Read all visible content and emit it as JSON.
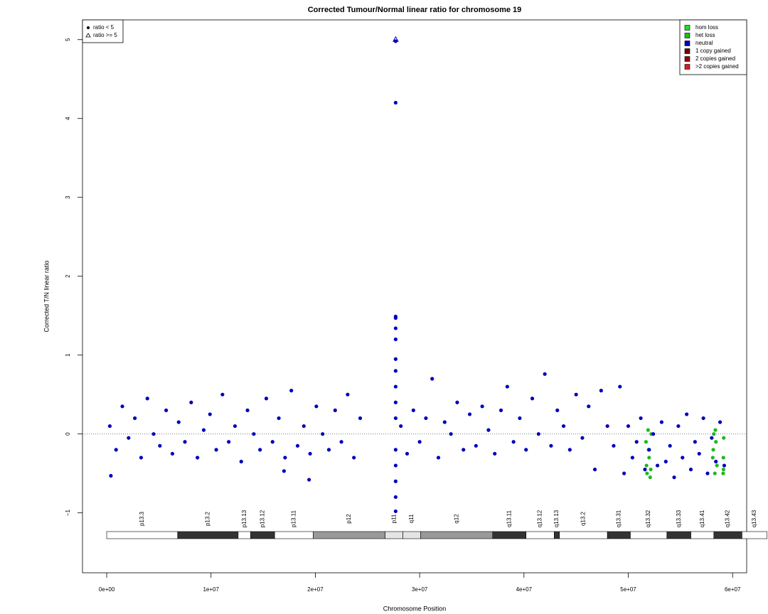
{
  "chart_data": {
    "type": "scatter",
    "title": "Corrected Tumour/Normal linear ratio for chromosome  19",
    "x_label": "Chromosome Position",
    "y_label": "Corrected T/N linear ratio",
    "xlim": [
      -2320000,
      61350000
    ],
    "ylim": [
      -1.76,
      5.25
    ],
    "xticks": [
      {
        "value": 0,
        "label": "0e+00"
      },
      {
        "value": 10000000,
        "label": "1e+07"
      },
      {
        "value": 20000000,
        "label": "2e+07"
      },
      {
        "value": 30000000,
        "label": "3e+07"
      },
      {
        "value": 40000000,
        "label": "4e+07"
      },
      {
        "value": 50000000,
        "label": "5e+07"
      },
      {
        "value": 60000000,
        "label": "6e+07"
      }
    ],
    "yticks": [
      {
        "value": -1,
        "label": "−1"
      },
      0,
      1,
      2,
      3,
      4,
      5
    ],
    "hline": 0,
    "series": [
      {
        "name": "hom loss",
        "color": "#22dd22",
        "x": [],
        "values": []
      },
      {
        "name": "het loss",
        "color": "#1fb81f",
        "x": [
          51700000,
          51800000,
          51900000,
          52000000,
          52100000,
          52200000,
          51750000,
          51950000,
          52150000,
          58100000,
          58200000,
          58300000,
          58400000,
          58500000,
          58150000,
          58350000,
          59100000,
          59150000,
          59120000,
          59130000
        ],
        "values": [
          -0.1,
          -0.5,
          0.05,
          -0.3,
          -0.55,
          0,
          -0.4,
          -0.2,
          -0.45,
          -0.3,
          0,
          -0.5,
          -0.1,
          -0.4,
          -0.2,
          0.05,
          -0.5,
          -0.05,
          -0.3,
          -0.45
        ]
      },
      {
        "name": "neutral",
        "color": "#0000bb",
        "x": [
          300000,
          900000,
          1500000,
          2100000,
          2700000,
          3300000,
          3900000,
          4500000,
          5100000,
          5700000,
          6300000,
          6900000,
          7500000,
          8100000,
          8700000,
          9300000,
          9900000,
          10500000,
          11100000,
          11700000,
          12300000,
          12900000,
          13500000,
          14100000,
          14700000,
          15300000,
          15900000,
          16500000,
          17100000,
          17700000,
          18300000,
          18900000,
          19500000,
          20100000,
          20700000,
          21300000,
          21900000,
          22500000,
          23100000,
          23700000,
          24300000,
          400000,
          19400000,
          17000000,
          27700000,
          27700000,
          27700000,
          27700000,
          27700000,
          27700000,
          27700000,
          27700000,
          27700000,
          27700000,
          27700000,
          27700000,
          27700000,
          27700000,
          27700000,
          27700000,
          28200000,
          28800000,
          29400000,
          30000000,
          30600000,
          31200000,
          31800000,
          32400000,
          33000000,
          33600000,
          34200000,
          34800000,
          35400000,
          36000000,
          36600000,
          37200000,
          37800000,
          38400000,
          39000000,
          39600000,
          40200000,
          40800000,
          41400000,
          42000000,
          42600000,
          43200000,
          43800000,
          44400000,
          45000000,
          45600000,
          46200000,
          46800000,
          47400000,
          48000000,
          48600000,
          49200000,
          49600000,
          50000000,
          50400000,
          50800000,
          51200000,
          51600000,
          52000000,
          52400000,
          52800000,
          53200000,
          53600000,
          54000000,
          54400000,
          54800000,
          55200000,
          55600000,
          56000000,
          56400000,
          56800000,
          57200000,
          57600000,
          58000000,
          58400000,
          58800000,
          59200000
        ],
        "values": [
          0.1,
          -0.2,
          0.35,
          -0.05,
          0.2,
          -0.3,
          0.45,
          0,
          -0.15,
          0.3,
          -0.25,
          0.15,
          -0.1,
          0.4,
          -0.3,
          0.05,
          0.25,
          -0.2,
          0.5,
          -0.1,
          0.1,
          -0.35,
          0.3,
          0,
          -0.2,
          0.45,
          -0.1,
          0.2,
          -0.3,
          0.55,
          -0.15,
          0.1,
          -0.25,
          0.35,
          0,
          -0.2,
          0.3,
          -0.1,
          0.5,
          -0.3,
          0.2,
          -0.53,
          -0.58,
          -0.47,
          1.49,
          1.47,
          1.34,
          1.2,
          0.95,
          0.8,
          0.6,
          0.4,
          0.2,
          -0.2,
          -0.4,
          -0.6,
          -0.8,
          -0.98,
          4.2,
          4.98,
          0.1,
          -0.25,
          0.3,
          -0.1,
          0.2,
          0.7,
          -0.3,
          0.15,
          0,
          0.4,
          -0.2,
          0.25,
          -0.15,
          0.35,
          0.05,
          -0.25,
          0.3,
          0.6,
          -0.1,
          0.2,
          -0.2,
          0.45,
          0,
          0.76,
          -0.15,
          0.3,
          0.1,
          -0.2,
          0.5,
          -0.05,
          0.35,
          -0.45,
          0.55,
          0.1,
          -0.15,
          0.6,
          -0.5,
          0.1,
          -0.3,
          -0.1,
          0.2,
          -0.45,
          -0.2,
          0,
          -0.4,
          0.15,
          -0.35,
          -0.15,
          -0.55,
          0.1,
          -0.3,
          0.25,
          -0.45,
          -0.1,
          -0.25,
          0.2,
          -0.5,
          -0.05,
          -0.35,
          0.15,
          -0.4
        ]
      },
      {
        "name": "1 copy gained",
        "color": "#6b0000",
        "x": [],
        "values": []
      },
      {
        "name": "2 copies gained",
        "color": "#9b0000",
        "x": [],
        "values": []
      },
      {
        "name": ">2 copies gained",
        "color": "#d42020",
        "x": [],
        "values": []
      }
    ],
    "high_points": {
      "color": "#0000bb",
      "x": [
        27700000
      ],
      "values": [
        5
      ]
    },
    "shape_legend": [
      "ratio < 5",
      "ratio >= 5"
    ],
    "bands": [
      {
        "name": "p13.3",
        "start": 0,
        "end": 6800000,
        "color": "#ffffff"
      },
      {
        "name": "p13.2",
        "start": 6800000,
        "end": 12600000,
        "color": "#333333"
      },
      {
        "name": "p13.13",
        "start": 12600000,
        "end": 13800000,
        "color": "#ffffff"
      },
      {
        "name": "p13.12",
        "start": 13800000,
        "end": 16100000,
        "color": "#333333"
      },
      {
        "name": "p13.11",
        "start": 16100000,
        "end": 19800000,
        "color": "#ffffff"
      },
      {
        "name": "p12",
        "start": 19800000,
        "end": 26700000,
        "color": "#999999"
      },
      {
        "name": "p11",
        "start": 26700000,
        "end": 28400000,
        "color": "#e4e4e4"
      },
      {
        "name": "q11",
        "start": 28400000,
        "end": 30100000,
        "color": "#e4e4e4"
      },
      {
        "name": "q12",
        "start": 30100000,
        "end": 37000000,
        "color": "#999999"
      },
      {
        "name": "q13.11",
        "start": 37000000,
        "end": 40200000,
        "color": "#333333"
      },
      {
        "name": "q13.12",
        "start": 40200000,
        "end": 42900000,
        "color": "#ffffff"
      },
      {
        "name": "q13.13",
        "start": 42900000,
        "end": 43400000,
        "color": "#333333"
      },
      {
        "name": "q13.2",
        "start": 43400000,
        "end": 48000000,
        "color": "#ffffff"
      },
      {
        "name": "q13.31",
        "start": 48000000,
        "end": 50200000,
        "color": "#333333"
      },
      {
        "name": "q13.32",
        "start": 50200000,
        "end": 53700000,
        "color": "#ffffff"
      },
      {
        "name": "q13.33",
        "start": 53700000,
        "end": 56000000,
        "color": "#333333"
      },
      {
        "name": "q13.41",
        "start": 56000000,
        "end": 58200000,
        "color": "#ffffff"
      },
      {
        "name": "q13.42",
        "start": 58200000,
        "end": 60900000,
        "color": "#333333"
      },
      {
        "name": "q13.43",
        "start": 60900000,
        "end": 63300000,
        "color": "#ffffff"
      }
    ]
  }
}
